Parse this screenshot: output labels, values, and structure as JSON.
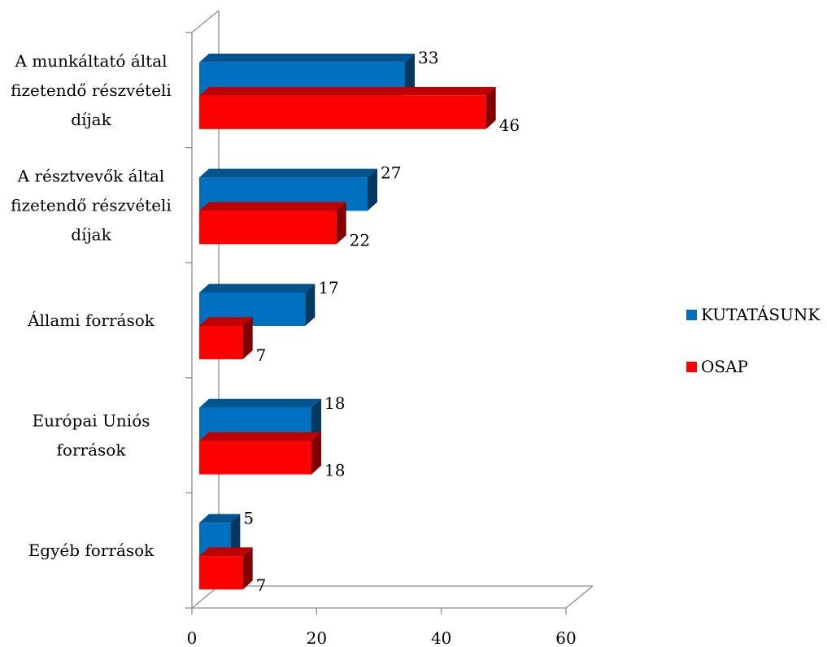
{
  "chart_data": {
    "type": "bar",
    "orientation": "horizontal",
    "categories": [
      [
        "A munkáltató által",
        "fizetendő részvételi",
        "díjak"
      ],
      [
        "A résztvevők által",
        "fizetendő részvételi",
        "díjak"
      ],
      [
        "Állami források"
      ],
      [
        "Európai Uniós",
        "források"
      ],
      [
        "Egyéb források"
      ]
    ],
    "series": [
      {
        "name": "KUTATÁSUNK",
        "color": "#0070C0",
        "values": [
          33,
          27,
          17,
          18,
          5
        ]
      },
      {
        "name": "OSAP",
        "color": "#FF0000",
        "values": [
          46,
          22,
          7,
          18,
          7
        ]
      }
    ],
    "xlim": [
      0,
      60
    ],
    "xticks": [
      "0",
      "20",
      "40",
      "60"
    ],
    "xlabel": "",
    "ylabel": "",
    "title": "",
    "grid": false,
    "legend_position": "right",
    "style": "3d"
  }
}
